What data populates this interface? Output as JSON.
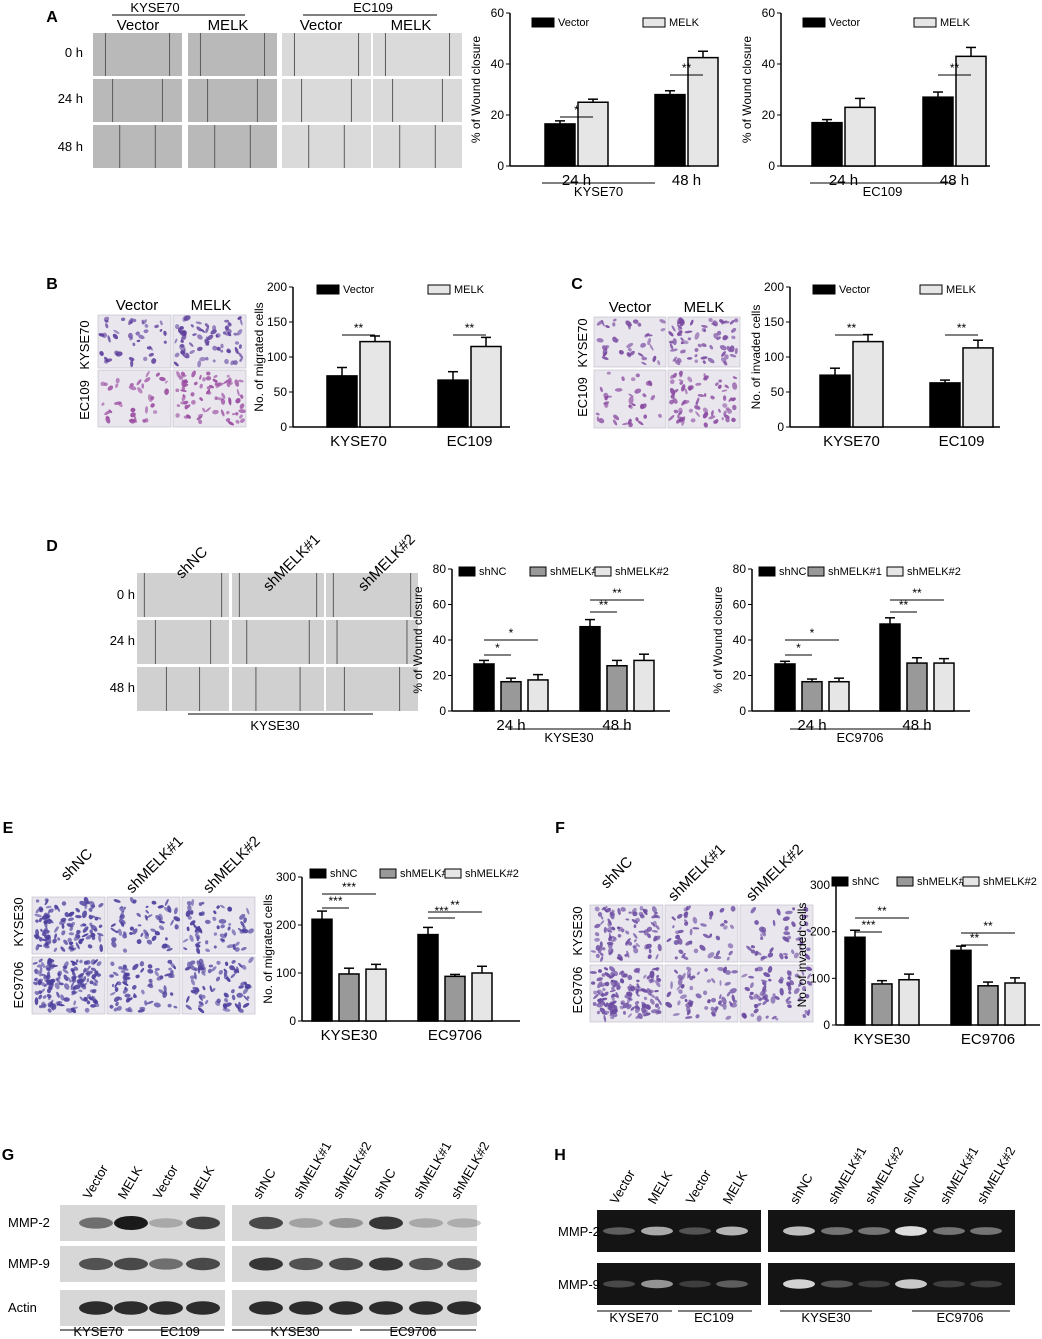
{
  "panels": {
    "A": {
      "label": "A",
      "top_groups": [
        "KYSE70",
        "EC109"
      ],
      "columns": [
        "Vector",
        "MELK",
        "Vector",
        "MELK"
      ],
      "rows": [
        "0 h",
        "24 h",
        "48 h"
      ]
    },
    "B": {
      "label": "B",
      "columns": [
        "Vector",
        "MELK"
      ],
      "rows": [
        "KYSE70",
        "EC109"
      ]
    },
    "C": {
      "label": "C",
      "columns": [
        "Vector",
        "MELK"
      ],
      "rows": [
        "KYSE70",
        "EC109"
      ]
    },
    "D": {
      "label": "D",
      "columns": [
        "shNC",
        "shMELK#1",
        "shMELK#2"
      ],
      "rows": [
        "0 h",
        "24 h",
        "48 h"
      ],
      "bottom": "KYSE30"
    },
    "E": {
      "label": "E",
      "columns": [
        "shNC",
        "shMELK#1",
        "shMELK#2"
      ],
      "rows": [
        "KYSE30",
        "EC9706"
      ]
    },
    "F": {
      "label": "F",
      "columns": [
        "shNC",
        "shMELK#1",
        "shMELK#2"
      ],
      "rows": [
        "KYSE30",
        "EC9706"
      ]
    },
    "G": {
      "label": "G",
      "lanes": [
        "Vector",
        "MELK",
        "Vector",
        "MELK",
        "shNC",
        "shMELK#1",
        "shMELK#2",
        "shNC",
        "shMELK#1",
        "shMELK#2"
      ],
      "rows": [
        "MMP-2",
        "MMP-9",
        "Actin"
      ],
      "groups": [
        "KYSE70",
        "EC109",
        "KYSE30",
        "EC9706"
      ]
    },
    "H": {
      "label": "H",
      "lanes": [
        "Vector",
        "MELK",
        "Vector",
        "MELK",
        "shNC",
        "shMELK#1",
        "shMELK#2",
        "shNC",
        "shMELK#1",
        "shMELK#2"
      ],
      "rows": [
        "MMP-2",
        "MMP-9"
      ],
      "groups": [
        "KYSE70",
        "EC109",
        "KYSE30",
        "EC9706"
      ]
    }
  },
  "chart_data": [
    {
      "id": "A1",
      "type": "bar",
      "ylabel": "% of Wound closure",
      "ylim": [
        0,
        60
      ],
      "yticks": [
        0,
        20,
        40,
        60
      ],
      "categories": [
        "24 h",
        "48 h"
      ],
      "group_label": "KYSE70",
      "series": [
        {
          "name": "Vector",
          "values": [
            16.5,
            28
          ],
          "errors": [
            1.2,
            1.5
          ],
          "color": "#000000"
        },
        {
          "name": "MELK",
          "values": [
            25,
            42.5
          ],
          "errors": [
            1.2,
            2.5
          ],
          "color": "#e6e6e6"
        }
      ],
      "significance": [
        {
          "category": 0,
          "text": "*"
        },
        {
          "category": 1,
          "text": "**"
        }
      ]
    },
    {
      "id": "A2",
      "type": "bar",
      "ylabel": "% of Wound closure",
      "ylim": [
        0,
        60
      ],
      "yticks": [
        0,
        20,
        40,
        60
      ],
      "categories": [
        "24 h",
        "48 h"
      ],
      "group_label": "EC109",
      "series": [
        {
          "name": "Vector",
          "values": [
            17,
            27
          ],
          "errors": [
            1.2,
            2
          ],
          "color": "#000000"
        },
        {
          "name": "MELK",
          "values": [
            23,
            43
          ],
          "errors": [
            3.5,
            3.5
          ],
          "color": "#e6e6e6"
        }
      ],
      "significance": [
        {
          "category": 1,
          "text": "**"
        }
      ]
    },
    {
      "id": "B",
      "type": "bar",
      "ylabel": "No. of migrated cells",
      "ylim": [
        0,
        200
      ],
      "yticks": [
        0,
        50,
        100,
        150,
        200
      ],
      "categories": [
        "KYSE70",
        "EC109"
      ],
      "series": [
        {
          "name": "Vector",
          "values": [
            73,
            67
          ],
          "errors": [
            12,
            12
          ],
          "color": "#000000"
        },
        {
          "name": "MELK",
          "values": [
            122,
            115
          ],
          "errors": [
            8,
            13
          ],
          "color": "#e6e6e6"
        }
      ],
      "significance": [
        {
          "category": 0,
          "text": "**"
        },
        {
          "category": 1,
          "text": "**"
        }
      ]
    },
    {
      "id": "C",
      "type": "bar",
      "ylabel": "No. of invaded cells",
      "ylim": [
        0,
        200
      ],
      "yticks": [
        0,
        50,
        100,
        150,
        200
      ],
      "categories": [
        "KYSE70",
        "EC109"
      ],
      "series": [
        {
          "name": "Vector",
          "values": [
            74,
            63
          ],
          "errors": [
            10,
            4
          ],
          "color": "#000000"
        },
        {
          "name": "MELK",
          "values": [
            122,
            113
          ],
          "errors": [
            10,
            11
          ],
          "color": "#e6e6e6"
        }
      ],
      "significance": [
        {
          "category": 0,
          "text": "**"
        },
        {
          "category": 1,
          "text": "**"
        }
      ]
    },
    {
      "id": "D1",
      "type": "bar",
      "ylabel": "% of Wound closure",
      "ylim": [
        0,
        80
      ],
      "yticks": [
        0,
        20,
        40,
        60,
        80
      ],
      "categories": [
        "24 h",
        "48 h"
      ],
      "group_label": "KYSE30",
      "series": [
        {
          "name": "shNC",
          "values": [
            26.5,
            47.5
          ],
          "errors": [
            2,
            4
          ],
          "color": "#000000"
        },
        {
          "name": "shMELK#1",
          "values": [
            16.5,
            25.5
          ],
          "errors": [
            2,
            3
          ],
          "color": "#999999"
        },
        {
          "name": "shMELK#2",
          "values": [
            17.5,
            28.5
          ],
          "errors": [
            3,
            3.5
          ],
          "color": "#e6e6e6"
        }
      ],
      "significance": [
        {
          "category": 0,
          "text": "*"
        },
        {
          "category": 0,
          "text": "*"
        },
        {
          "category": 1,
          "text": "**"
        },
        {
          "category": 1,
          "text": "**"
        }
      ]
    },
    {
      "id": "D2",
      "type": "bar",
      "ylabel": "% of Wound closure",
      "ylim": [
        0,
        80
      ],
      "yticks": [
        0,
        20,
        40,
        60,
        80
      ],
      "categories": [
        "24 h",
        "48 h"
      ],
      "group_label": "EC9706",
      "series": [
        {
          "name": "shNC",
          "values": [
            26.5,
            49
          ],
          "errors": [
            1.5,
            3.5
          ],
          "color": "#000000"
        },
        {
          "name": "shMELK#1",
          "values": [
            16.5,
            27
          ],
          "errors": [
            1.5,
            3
          ],
          "color": "#999999"
        },
        {
          "name": "shMELK#2",
          "values": [
            16.5,
            27
          ],
          "errors": [
            2,
            2.5
          ],
          "color": "#e6e6e6"
        }
      ],
      "significance": [
        {
          "category": 0,
          "text": "*"
        },
        {
          "category": 0,
          "text": "*"
        },
        {
          "category": 1,
          "text": "**"
        },
        {
          "category": 1,
          "text": "**"
        }
      ]
    },
    {
      "id": "E",
      "type": "bar",
      "ylabel": "No. of migrated cells",
      "ylim": [
        0,
        300
      ],
      "yticks": [
        0,
        100,
        200,
        300
      ],
      "categories": [
        "KYSE30",
        "EC9706"
      ],
      "series": [
        {
          "name": "shNC",
          "values": [
            212,
            180
          ],
          "errors": [
            17,
            15
          ],
          "color": "#000000"
        },
        {
          "name": "shMELK#1",
          "values": [
            98,
            93
          ],
          "errors": [
            12,
            4
          ],
          "color": "#999999"
        },
        {
          "name": "shMELK#2",
          "values": [
            108,
            100
          ],
          "errors": [
            10,
            14
          ],
          "color": "#e6e6e6"
        }
      ],
      "significance": [
        {
          "category": 0,
          "text": "***"
        },
        {
          "category": 0,
          "text": "***"
        },
        {
          "category": 1,
          "text": "***"
        },
        {
          "category": 1,
          "text": "**"
        }
      ]
    },
    {
      "id": "F",
      "type": "bar",
      "ylabel": "No. of invaded cells",
      "ylim": [
        0,
        300
      ],
      "yticks": [
        0,
        100,
        200,
        300
      ],
      "categories": [
        "KYSE30",
        "EC9706"
      ],
      "series": [
        {
          "name": "shNC",
          "values": [
            188,
            160
          ],
          "errors": [
            15,
            9
          ],
          "color": "#000000"
        },
        {
          "name": "shMELK#1",
          "values": [
            88,
            84
          ],
          "errors": [
            7,
            8
          ],
          "color": "#999999"
        },
        {
          "name": "shMELK#2",
          "values": [
            97,
            90
          ],
          "errors": [
            12,
            11
          ],
          "color": "#e6e6e6"
        }
      ],
      "significance": [
        {
          "category": 0,
          "text": "***"
        },
        {
          "category": 0,
          "text": "**"
        },
        {
          "category": 1,
          "text": "**"
        },
        {
          "category": 1,
          "text": "**"
        }
      ]
    }
  ]
}
